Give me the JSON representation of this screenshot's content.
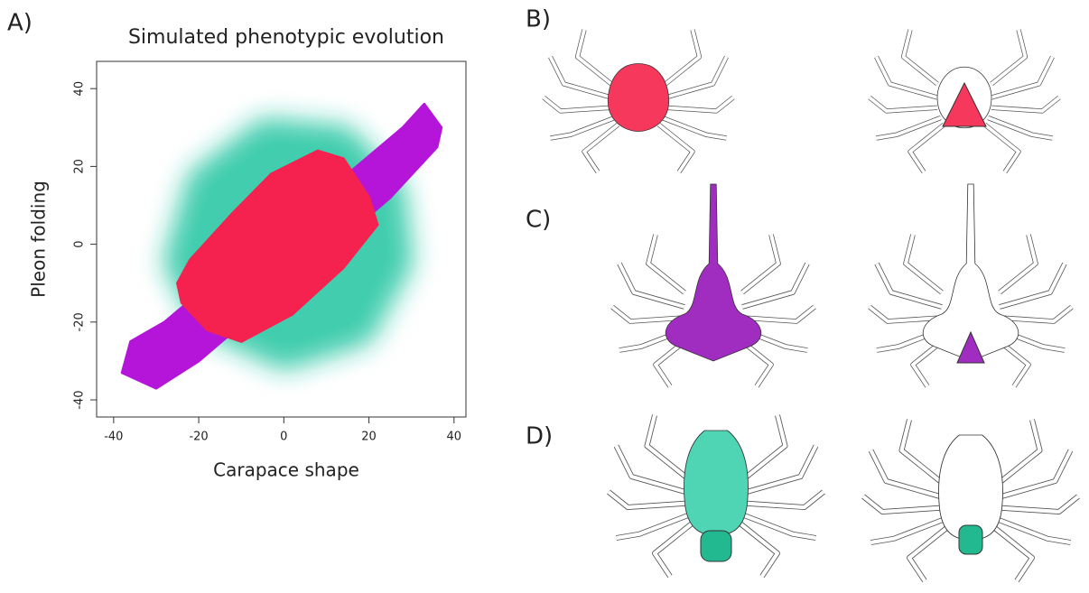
{
  "panel_labels": [
    "A)",
    "B)",
    "C)",
    "D)"
  ],
  "chart_data": {
    "type": "scatter",
    "title": "Simulated phenotypic evolution",
    "x_label": "Carapace shape",
    "y_label": "Pleon folding",
    "xlim": [
      -44,
      42.8
    ],
    "ylim": [
      -44.4,
      47
    ],
    "xticks": [
      -40,
      -20,
      0,
      20,
      40
    ],
    "yticks": [
      -40,
      -20,
      0,
      20,
      40
    ],
    "series": [
      {
        "color": "#22c4a0",
        "x": [
          -28,
          -22,
          -5,
          15,
          28,
          30,
          20,
          0,
          -20
        ],
        "y": [
          -5,
          18,
          32,
          30,
          15,
          -5,
          -25,
          -32,
          -22
        ]
      },
      {
        "color": "#b415d8",
        "x": [
          -38,
          -36,
          -28,
          -15,
          0,
          15,
          28,
          33,
          37,
          36,
          25,
          10,
          -5,
          -20,
          -30
        ],
        "y": [
          -33,
          -25,
          -20,
          -8,
          5,
          18,
          30,
          36,
          30,
          25,
          12,
          -2,
          -16,
          -30,
          -37
        ]
      },
      {
        "color": "#f5224f",
        "x": [
          -25,
          -22,
          -12,
          -3,
          8,
          14,
          20,
          22,
          14,
          2,
          -10,
          -18,
          -24
        ],
        "y": [
          -10,
          -4,
          8,
          18,
          24,
          22,
          12,
          5,
          -6,
          -18,
          -25,
          -22,
          -15
        ]
      }
    ]
  }
}
